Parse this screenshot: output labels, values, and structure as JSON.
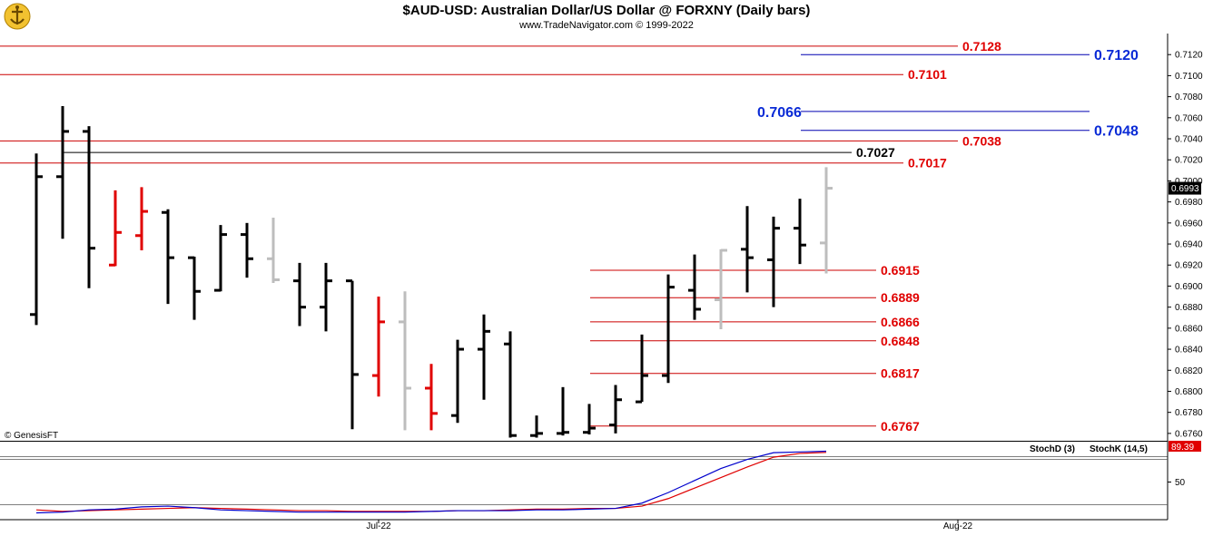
{
  "header": {
    "title": "$AUD-USD:  Australian Dollar/US Dollar @ FORXNY  (Daily bars)",
    "subtitle": "www.TradeNavigator.com © 1999-2022"
  },
  "watermark": "© GenesisFT",
  "chart_data": {
    "type": "ohlc",
    "ylim": [
      0.6753,
      0.714
    ],
    "y_ticks": [
      "0.6760",
      "0.6780",
      "0.6800",
      "0.6820",
      "0.6840",
      "0.6860",
      "0.6880",
      "0.6900",
      "0.6920",
      "0.6940",
      "0.6960",
      "0.6980",
      "0.7000",
      "0.7020",
      "0.7040",
      "0.7060",
      "0.7080",
      "0.7100",
      "0.7120"
    ],
    "x_labels": [
      {
        "label": "Jul-22",
        "bar_index": 13
      },
      {
        "label": "Aug-22",
        "bar_index": 35
      }
    ],
    "last_price": "0.6993",
    "bars": [
      {
        "h": 0.7026,
        "l": 0.6863,
        "o": 0.6873,
        "c": 0.7004,
        "color": "black"
      },
      {
        "h": 0.7071,
        "l": 0.6945,
        "o": 0.7004,
        "c": 0.7047,
        "color": "black"
      },
      {
        "h": 0.7052,
        "l": 0.6898,
        "o": 0.7047,
        "c": 0.6936,
        "color": "black"
      },
      {
        "h": 0.6991,
        "l": 0.6919,
        "o": 0.692,
        "c": 0.6951,
        "color": "red"
      },
      {
        "h": 0.6994,
        "l": 0.6934,
        "o": 0.6948,
        "c": 0.6971,
        "color": "red"
      },
      {
        "h": 0.6973,
        "l": 0.6883,
        "o": 0.697,
        "c": 0.6927,
        "color": "black"
      },
      {
        "h": 0.6928,
        "l": 0.6868,
        "o": 0.6927,
        "c": 0.6895,
        "color": "black"
      },
      {
        "h": 0.6958,
        "l": 0.6895,
        "o": 0.6896,
        "c": 0.6949,
        "color": "black"
      },
      {
        "h": 0.696,
        "l": 0.6908,
        "o": 0.6949,
        "c": 0.6926,
        "color": "black"
      },
      {
        "h": 0.6965,
        "l": 0.6903,
        "o": 0.6926,
        "c": 0.6906,
        "color": "gray"
      },
      {
        "h": 0.6922,
        "l": 0.6862,
        "o": 0.6905,
        "c": 0.688,
        "color": "black"
      },
      {
        "h": 0.6922,
        "l": 0.6857,
        "o": 0.688,
        "c": 0.6905,
        "color": "black"
      },
      {
        "h": 0.6905,
        "l": 0.6764,
        "o": 0.6905,
        "c": 0.6816,
        "color": "black"
      },
      {
        "h": 0.689,
        "l": 0.6795,
        "o": 0.6815,
        "c": 0.6866,
        "color": "red"
      },
      {
        "h": 0.6895,
        "l": 0.6763,
        "o": 0.6866,
        "c": 0.6803,
        "color": "gray"
      },
      {
        "h": 0.6826,
        "l": 0.6763,
        "o": 0.6803,
        "c": 0.6779,
        "color": "red"
      },
      {
        "h": 0.6849,
        "l": 0.677,
        "o": 0.6777,
        "c": 0.684,
        "color": "black"
      },
      {
        "h": 0.6873,
        "l": 0.6792,
        "o": 0.684,
        "c": 0.6857,
        "color": "black"
      },
      {
        "h": 0.6857,
        "l": 0.6756,
        "o": 0.6845,
        "c": 0.6758,
        "color": "black"
      },
      {
        "h": 0.6777,
        "l": 0.6756,
        "o": 0.6758,
        "c": 0.676,
        "color": "black"
      },
      {
        "h": 0.6804,
        "l": 0.6758,
        "o": 0.676,
        "c": 0.6761,
        "color": "black"
      },
      {
        "h": 0.6788,
        "l": 0.6759,
        "o": 0.6761,
        "c": 0.6765,
        "color": "black"
      },
      {
        "h": 0.6806,
        "l": 0.676,
        "o": 0.6768,
        "c": 0.6792,
        "color": "black"
      },
      {
        "h": 0.6854,
        "l": 0.679,
        "o": 0.679,
        "c": 0.6815,
        "color": "black"
      },
      {
        "h": 0.6911,
        "l": 0.6808,
        "o": 0.6815,
        "c": 0.6899,
        "color": "black"
      },
      {
        "h": 0.693,
        "l": 0.6868,
        "o": 0.6896,
        "c": 0.6878,
        "color": "black"
      },
      {
        "h": 0.6935,
        "l": 0.6859,
        "o": 0.6887,
        "c": 0.6934,
        "color": "gray"
      },
      {
        "h": 0.6976,
        "l": 0.6894,
        "o": 0.6935,
        "c": 0.6927,
        "color": "black"
      },
      {
        "h": 0.6966,
        "l": 0.688,
        "o": 0.6925,
        "c": 0.6955,
        "color": "black"
      },
      {
        "h": 0.6983,
        "l": 0.6921,
        "o": 0.6955,
        "c": 0.6939,
        "color": "black"
      },
      {
        "h": 0.7013,
        "l": 0.6912,
        "o": 0.6941,
        "c": 0.6993,
        "color": "gray"
      }
    ],
    "levels": [
      {
        "value": 0.7128,
        "label": "0.7128",
        "color": "#e00000",
        "line_color": "#cc0000",
        "style": "resistance"
      },
      {
        "value": 0.7101,
        "label": "0.7101",
        "color": "#e00000",
        "line_color": "#cc0000",
        "style": "resistance"
      },
      {
        "value": 0.7038,
        "label": "0.7038",
        "color": "#e00000",
        "line_color": "#cc0000",
        "style": "resistance"
      },
      {
        "value": 0.7017,
        "label": "0.7017",
        "color": "#e00000",
        "line_color": "#cc0000",
        "style": "resistance"
      },
      {
        "value": 0.7027,
        "label": "0.7027",
        "color": "#000000",
        "line_color": "#000000",
        "style": "black"
      },
      {
        "value": 0.6915,
        "label": "0.6915",
        "color": "#e00000",
        "line_color": "#cc0000",
        "style": "support"
      },
      {
        "value": 0.6889,
        "label": "0.6889",
        "color": "#e00000",
        "line_color": "#cc0000",
        "style": "support"
      },
      {
        "value": 0.6866,
        "label": "0.6866",
        "color": "#e00000",
        "line_color": "#cc0000",
        "style": "support"
      },
      {
        "value": 0.6848,
        "label": "0.6848",
        "color": "#e00000",
        "line_color": "#cc0000",
        "style": "support"
      },
      {
        "value": 0.6817,
        "label": "0.6817",
        "color": "#e00000",
        "line_color": "#cc0000",
        "style": "support"
      },
      {
        "value": 0.6767,
        "label": "0.6767",
        "color": "#e00000",
        "line_color": "#cc0000",
        "style": "support"
      }
    ],
    "blue_levels": [
      {
        "value": 0.712,
        "label": "0.7120",
        "label_side": "right"
      },
      {
        "value": 0.7066,
        "label": "0.7066",
        "label_side": "left"
      },
      {
        "value": 0.7048,
        "label": "0.7048",
        "label_side": "right"
      }
    ],
    "stochastic": {
      "stochD_label": "StochD (3)",
      "stochK_label": "StochK (14,5)",
      "stochD_color": "#e00000",
      "stochK_color": "#0000cc",
      "last_value": "89.39",
      "tick_label": "50",
      "ylim": [
        0,
        100
      ],
      "lines": [
        80,
        20
      ],
      "stochD": [
        13,
        11,
        12,
        13,
        14,
        15,
        16,
        15,
        14,
        13,
        12,
        12,
        11,
        11,
        11,
        11,
        12,
        12,
        13,
        14,
        14,
        15,
        15,
        18,
        28,
        42,
        56,
        70,
        83,
        88,
        89.4
      ],
      "stochK": [
        9,
        10,
        13,
        14,
        17,
        18,
        16,
        13,
        12,
        11,
        10,
        10,
        10,
        10,
        10,
        11,
        12,
        12,
        12,
        13,
        13,
        14,
        15,
        22,
        36,
        52,
        68,
        80,
        89,
        90,
        91
      ]
    }
  }
}
